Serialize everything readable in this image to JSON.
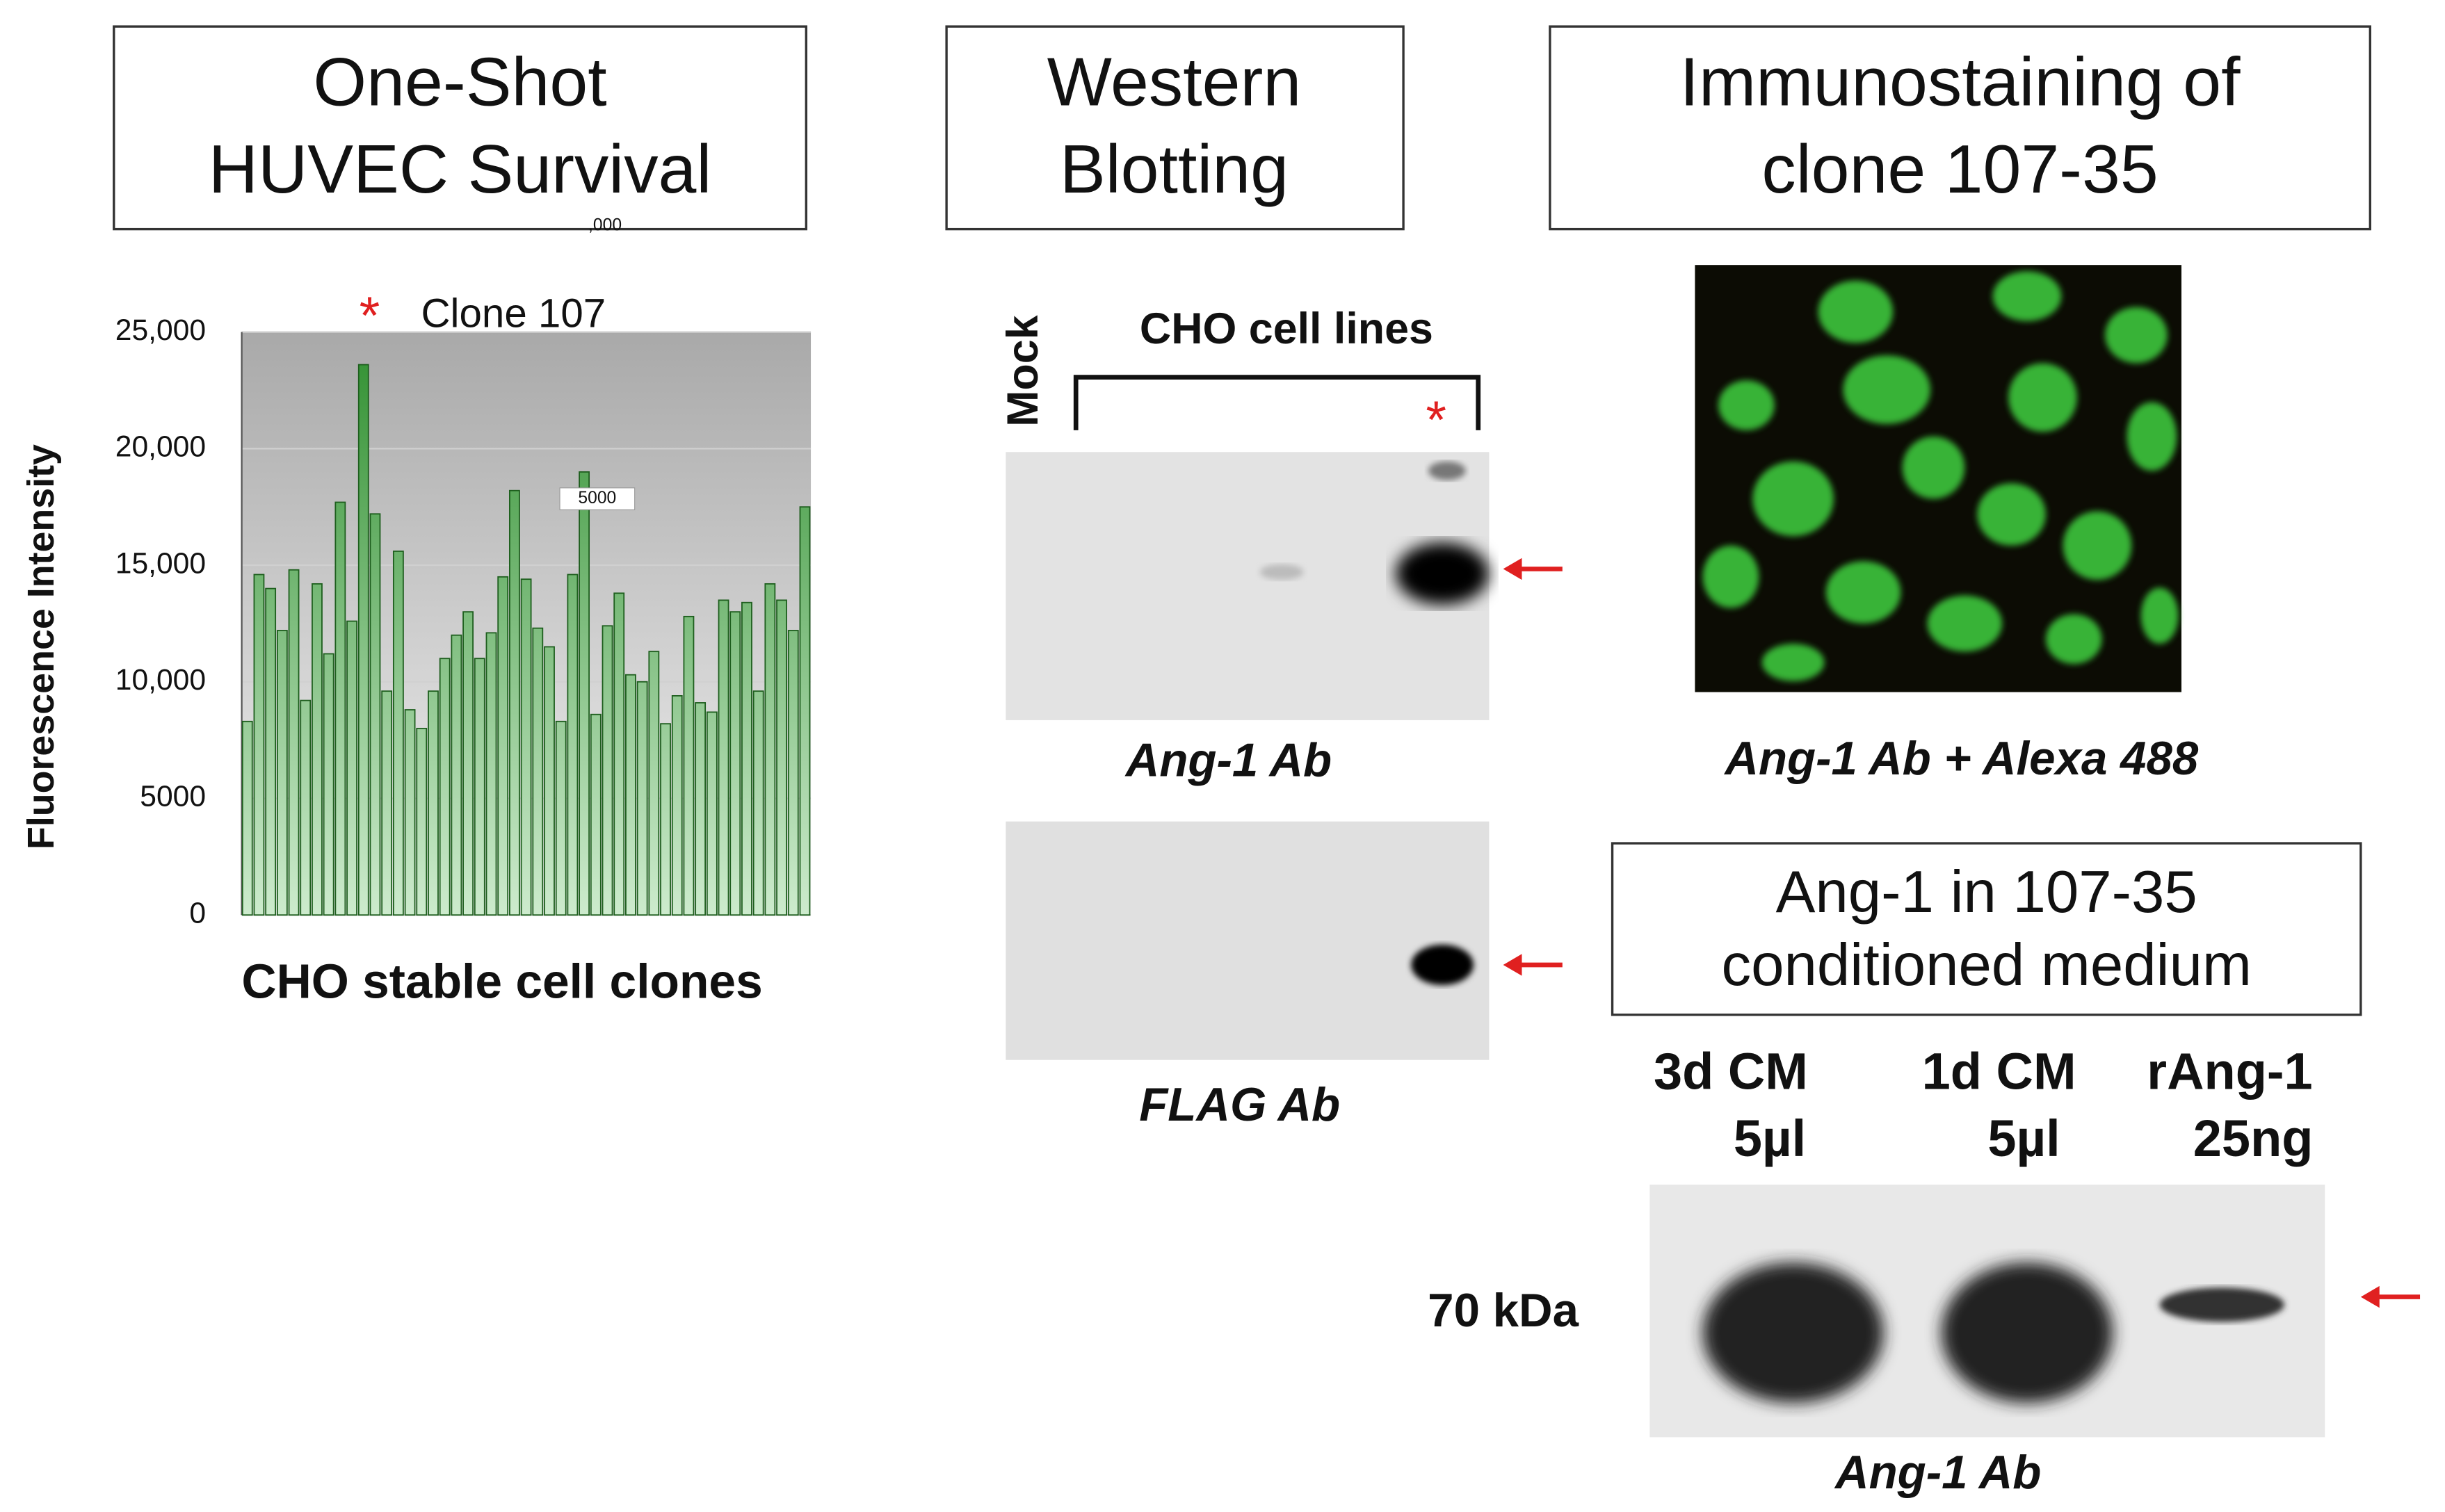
{
  "chart_data": {
    "type": "bar",
    "title": [
      "One-Shot",
      "HUVEC Survival"
    ],
    "x_label": "CHO stable cell clones",
    "y_label": "Fluorescence Intensity",
    "annotation": {
      "symbol": "*",
      "text": "Clone 107"
    },
    "stray_labels": [
      ",000",
      "5000"
    ],
    "categories": [
      null,
      null,
      null,
      null,
      null,
      null,
      null,
      null,
      null,
      null,
      null,
      null,
      null,
      null,
      null,
      null,
      null,
      null,
      null,
      null,
      null,
      null,
      null,
      null,
      null,
      null,
      null,
      null,
      null,
      null,
      null,
      null,
      null,
      null,
      null,
      null,
      null,
      null,
      null,
      null,
      null,
      null,
      null,
      null,
      null,
      null,
      null,
      null,
      null
    ],
    "values": [
      8300,
      14600,
      14000,
      12200,
      14800,
      9200,
      14200,
      11200,
      17700,
      12600,
      23600,
      17200,
      9600,
      15600,
      8800,
      8000,
      9600,
      11000,
      12000,
      13000,
      11000,
      12100,
      14500,
      18200,
      14400,
      12300,
      11500,
      8300,
      14600,
      19000,
      8600,
      12400,
      13800,
      10300,
      10000,
      11300,
      8200,
      9400,
      12800,
      9100,
      8700,
      13500,
      13000,
      13400,
      9600,
      14200,
      13500,
      12200,
      17500
    ],
    "color": "#2f8f2f",
    "ylim": [
      0,
      25000
    ],
    "yticks": [
      0,
      5000,
      {
        "value": 10000,
        "label": "10,000"
      },
      {
        "value": 15000,
        "label": "15,000"
      },
      {
        "value": 20000,
        "label": "20,000"
      },
      {
        "value": 25000,
        "label": "25,000"
      }
    ],
    "grid": true
  },
  "western": {
    "title": [
      "Western",
      "Blotting"
    ],
    "mock": "Mock",
    "lines": "CHO cell lines",
    "marker": "*",
    "caption_top": "Ang-1 Ab",
    "caption_bottom": "FLAG Ab"
  },
  "immuno": {
    "title": [
      "Immunostaining of",
      "clone 107-35"
    ],
    "caption": "Ang-1 Ab + Alexa 488"
  },
  "medium": {
    "title": [
      "Ang-1 in 107-35",
      "conditioned medium"
    ],
    "lanes": [
      [
        "3d CM",
        "5µl"
      ],
      [
        "1d CM",
        "5µl"
      ],
      [
        "rAng-1",
        "25ng"
      ]
    ],
    "size_marker": "70 kDa",
    "caption": "Ang-1 Ab"
  }
}
